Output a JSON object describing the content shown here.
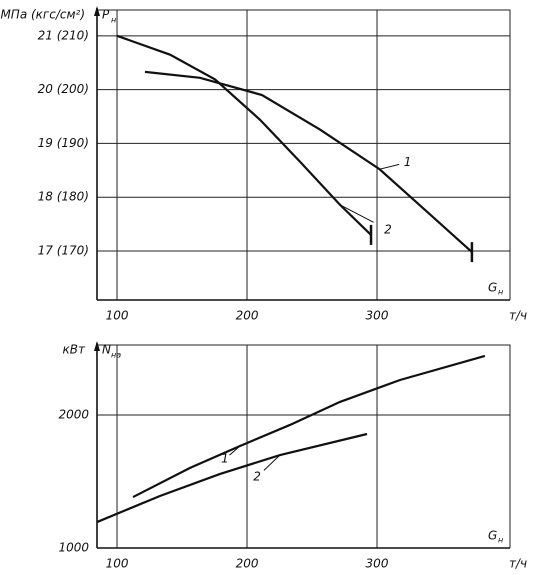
{
  "chart_data": [
    {
      "type": "line",
      "y_unit": "МПа (кгс/см²)",
      "y_label": {
        "main": "P",
        "sub": "н"
      },
      "x_label": {
        "main": "G",
        "sub": "н"
      },
      "x_unit": "т/ч",
      "xlim": [
        84.6,
        402.3
      ],
      "ylim": [
        16.09,
        21.48
      ],
      "xticks": [
        100,
        200,
        300
      ],
      "yticks": [
        {
          "value": 21,
          "label": "21 (210)"
        },
        {
          "value": 20,
          "label": "20 (200)"
        },
        {
          "value": 19,
          "label": "19 (190)"
        },
        {
          "value": 18,
          "label": "18 (180)"
        },
        {
          "value": 17,
          "label": "17 (170)"
        }
      ],
      "grid": true,
      "series": [
        {
          "name": "1",
          "color": "#111111",
          "x": [
            121.5,
            163.8,
            211.5,
            256,
            302,
            340.8,
            373
          ],
          "values": [
            20.33,
            20.22,
            19.9,
            19.26,
            18.52,
            17.68,
            16.98
          ]
        },
        {
          "name": "2",
          "color": "#111111",
          "x": [
            100,
            140.8,
            175.4,
            210,
            240.8,
            271.5,
            295.4
          ],
          "values": [
            21.0,
            20.65,
            20.19,
            19.44,
            18.66,
            17.86,
            17.3
          ]
        }
      ]
    },
    {
      "type": "line",
      "y_unit": "кВт",
      "y_label": {
        "main": "N",
        "sub": "на"
      },
      "x_label": {
        "main": "G",
        "sub": "н"
      },
      "x_unit": "т/ч",
      "xlim": [
        84.6,
        402.3
      ],
      "ylim": [
        1000,
        2526
      ],
      "xticks": [
        100,
        200,
        300
      ],
      "yticks": [
        1000,
        2000
      ],
      "grid": true,
      "series": [
        {
          "name": "1",
          "color": "#111111",
          "x": [
            112.3,
            156.2,
            194.6,
            233,
            271.5,
            317.7,
            383
          ],
          "values": [
            1383,
            1602,
            1767,
            1925,
            2098,
            2263,
            2444
          ]
        },
        {
          "name": "2",
          "color": "#111111",
          "x": [
            84.6,
            133,
            179,
            225.4,
            292.3
          ],
          "values": [
            1195,
            1391,
            1556,
            1699,
            1857
          ]
        }
      ]
    }
  ]
}
